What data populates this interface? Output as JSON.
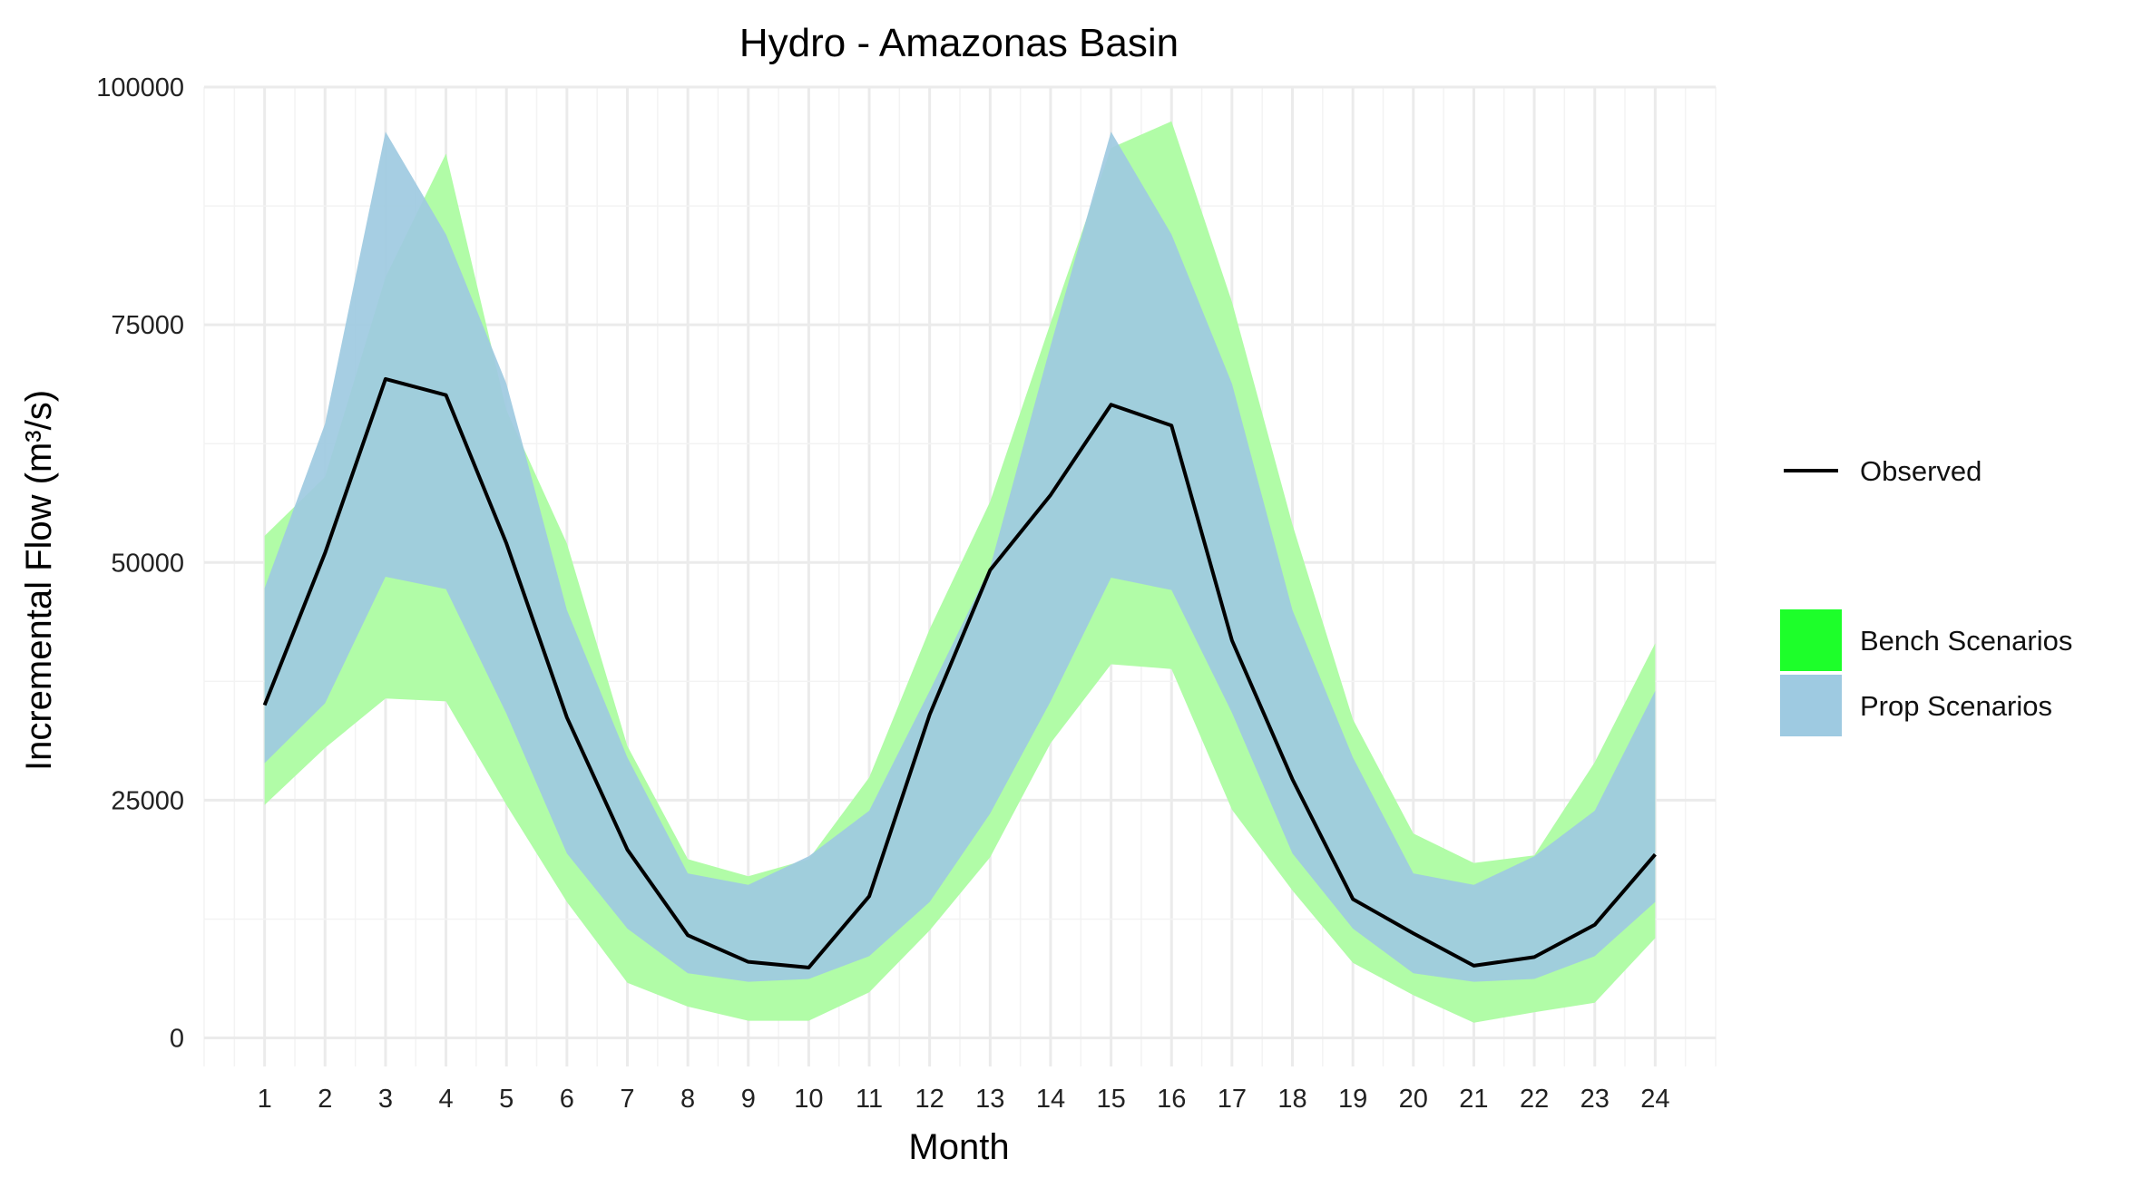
{
  "chart_data": {
    "type": "area",
    "title": "Hydro - Amazonas Basin",
    "xlabel": "Month",
    "ylabel": "Incremental Flow (m³/s)",
    "x": [
      1,
      2,
      3,
      4,
      5,
      6,
      7,
      8,
      9,
      10,
      11,
      12,
      13,
      14,
      15,
      16,
      17,
      18,
      19,
      20,
      21,
      22,
      23,
      24
    ],
    "x_ticks": [
      "1",
      "2",
      "3",
      "4",
      "5",
      "6",
      "7",
      "8",
      "9",
      "10",
      "11",
      "12",
      "13",
      "14",
      "15",
      "16",
      "17",
      "18",
      "19",
      "20",
      "21",
      "22",
      "23",
      "24"
    ],
    "xlim": [
      0,
      25
    ],
    "ylim": [
      -3000,
      100000
    ],
    "y_ticks": [
      0,
      25000,
      50000,
      75000,
      100000
    ],
    "y_tick_labels": [
      "0",
      "25000",
      "50000",
      "75000",
      "100000"
    ],
    "grid": true,
    "legend_position": "right",
    "series": [
      {
        "name": "Observed",
        "kind": "line",
        "color": "#000000",
        "values": [
          35000,
          51000,
          69300,
          67600,
          52000,
          33700,
          19800,
          10800,
          8000,
          7400,
          14900,
          34000,
          49200,
          57100,
          66600,
          64400,
          41800,
          27200,
          14600,
          11000,
          7600,
          8500,
          11900,
          19300
        ]
      },
      {
        "name": "Bench Scenarios",
        "kind": "band",
        "color": "#1dff2a",
        "fill_color": "#b1fca7",
        "lower": [
          24500,
          30500,
          35700,
          35400,
          24500,
          14300,
          5800,
          3300,
          1800,
          1800,
          4800,
          11300,
          19000,
          31000,
          39300,
          38800,
          24000,
          15500,
          7900,
          4500,
          1600,
          2700,
          3700,
          10500
        ],
        "upper": [
          52800,
          59000,
          80000,
          93000,
          66000,
          52000,
          30700,
          18800,
          17000,
          18800,
          27400,
          43000,
          56400,
          75200,
          93600,
          96400,
          77400,
          54000,
          33500,
          21500,
          18400,
          19200,
          29000,
          41500
        ]
      },
      {
        "name": "Prop Scenarios",
        "kind": "band",
        "color": "#9ecae1",
        "fill_color": "#9ecae1",
        "lower": [
          28900,
          35200,
          48500,
          47200,
          34100,
          19400,
          11500,
          6800,
          5900,
          6200,
          8600,
          14300,
          23600,
          35400,
          48400,
          47100,
          34200,
          19400,
          11500,
          6800,
          5900,
          6200,
          8600,
          14300
        ],
        "upper": [
          47300,
          64600,
          95300,
          84500,
          68800,
          45000,
          29500,
          17300,
          16100,
          19100,
          23900,
          36500,
          49500,
          72800,
          95300,
          84500,
          68800,
          45000,
          29500,
          17300,
          16100,
          19100,
          23900,
          36500
        ]
      }
    ],
    "legend": {
      "line_entries": [
        "Observed"
      ],
      "fill_entries": [
        "Bench Scenarios",
        "Prop Scenarios"
      ]
    }
  }
}
